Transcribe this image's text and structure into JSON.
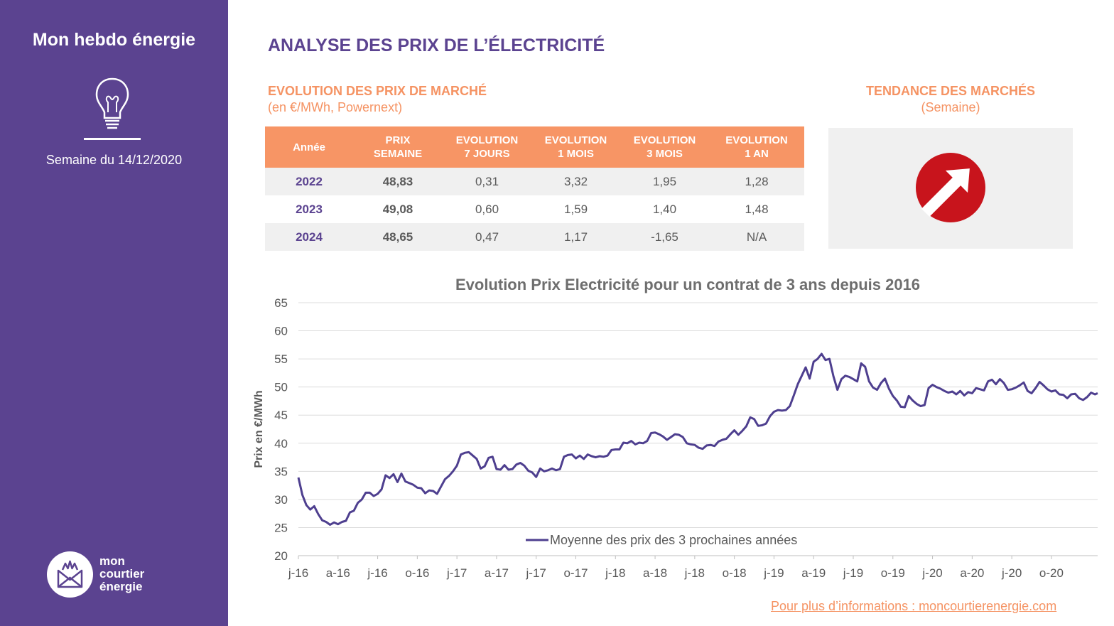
{
  "sidebar": {
    "title": "Mon hebdo énergie",
    "week": "Semaine du 14/12/2020",
    "bulb_icon": "lightbulb-icon",
    "logo_icon": "envelope-crown-icon",
    "logo_lines": [
      "mon",
      "courtier",
      "énergie"
    ]
  },
  "header": {
    "title": "ANALYSE DES PRIX DE L’ÉLECTRICITÉ",
    "table_title": "EVOLUTION DES PRIX DE MARCHÉ",
    "table_note": "(en €/MWh, Powernext)",
    "trend_title": "TENDANCE DES MARCHÉS",
    "trend_note": "(Semaine)"
  },
  "colors": {
    "purple": "#5b4390",
    "orange": "#f79565",
    "trend_red": "#c8141c",
    "line": "#4e3f8f"
  },
  "table": {
    "headers": [
      [
        "Année"
      ],
      [
        "PRIX",
        "SEMAINE"
      ],
      [
        "EVOLUTION",
        "7 JOURS"
      ],
      [
        "EVOLUTION",
        "1 MOIS"
      ],
      [
        "EVOLUTION",
        "3 MOIS"
      ],
      [
        "EVOLUTION",
        "1 AN"
      ]
    ],
    "rows": [
      [
        "2022",
        "48,83",
        "0,31",
        "3,32",
        "1,95",
        "1,28"
      ],
      [
        "2023",
        "49,08",
        "0,60",
        "1,59",
        "1,40",
        "1,48"
      ],
      [
        "2024",
        "48,65",
        "0,47",
        "1,17",
        "-1,65",
        "N/A"
      ]
    ]
  },
  "trend": {
    "direction": "up-right",
    "icon": "arrow-up-right-icon"
  },
  "footer": {
    "link": "Pour plus d’informations : moncourtierenergie.com"
  },
  "chart_data": {
    "type": "line",
    "title": "Evolution Prix Electricité pour un contrat de 3 ans depuis 2016",
    "xlabel": "",
    "ylabel": "Prix en €/MWh",
    "ylim": [
      20,
      65
    ],
    "yticks": [
      20,
      25,
      30,
      35,
      40,
      45,
      50,
      55,
      60,
      65
    ],
    "grid": true,
    "legend": "bottom-center",
    "x_tick_labels": [
      "j-16",
      "a-16",
      "j-16",
      "o-16",
      "j-17",
      "a-17",
      "j-17",
      "o-17",
      "j-18",
      "a-18",
      "j-18",
      "o-18",
      "j-19",
      "a-19",
      "j-19",
      "o-19",
      "j-20",
      "a-20",
      "j-20",
      "o-20"
    ],
    "x_tick_months": [
      0,
      3,
      6,
      9,
      12,
      15,
      18,
      21,
      24,
      27,
      30,
      33,
      36,
      39,
      42,
      45,
      48,
      51,
      54,
      57
    ],
    "x_range_months": [
      0,
      60.5
    ],
    "series": [
      {
        "name": "Moyenne des prix des 3 prochaines années",
        "points": [
          [
            0.0,
            33.9
          ],
          [
            0.3,
            30.8
          ],
          [
            0.6,
            29.0
          ],
          [
            0.9,
            28.2
          ],
          [
            1.2,
            28.8
          ],
          [
            1.5,
            27.4
          ],
          [
            1.8,
            26.3
          ],
          [
            2.1,
            26.0
          ],
          [
            2.4,
            25.5
          ],
          [
            2.7,
            25.9
          ],
          [
            3.0,
            25.6
          ],
          [
            3.3,
            26.0
          ],
          [
            3.6,
            26.2
          ],
          [
            3.9,
            27.7
          ],
          [
            4.2,
            28.0
          ],
          [
            4.5,
            29.4
          ],
          [
            4.8,
            30.0
          ],
          [
            5.1,
            31.2
          ],
          [
            5.4,
            31.2
          ],
          [
            5.7,
            30.6
          ],
          [
            6.0,
            31.0
          ],
          [
            6.3,
            31.8
          ],
          [
            6.6,
            34.3
          ],
          [
            6.9,
            33.8
          ],
          [
            7.2,
            34.5
          ],
          [
            7.5,
            33.1
          ],
          [
            7.8,
            34.6
          ],
          [
            8.1,
            33.2
          ],
          [
            8.4,
            32.9
          ],
          [
            8.7,
            32.6
          ],
          [
            9.0,
            32.1
          ],
          [
            9.3,
            32.0
          ],
          [
            9.6,
            31.1
          ],
          [
            9.9,
            31.6
          ],
          [
            10.2,
            31.5
          ],
          [
            10.5,
            31.0
          ],
          [
            10.8,
            32.3
          ],
          [
            11.1,
            33.6
          ],
          [
            11.4,
            34.2
          ],
          [
            11.7,
            35.0
          ],
          [
            12.0,
            36.0
          ],
          [
            12.3,
            38.0
          ],
          [
            12.6,
            38.3
          ],
          [
            12.9,
            38.4
          ],
          [
            13.2,
            37.8
          ],
          [
            13.5,
            37.2
          ],
          [
            13.8,
            35.5
          ],
          [
            14.1,
            35.9
          ],
          [
            14.4,
            37.4
          ],
          [
            14.7,
            37.6
          ],
          [
            15.0,
            35.4
          ],
          [
            15.3,
            35.3
          ],
          [
            15.6,
            36.1
          ],
          [
            15.9,
            35.3
          ],
          [
            16.2,
            35.4
          ],
          [
            16.5,
            36.2
          ],
          [
            16.8,
            36.5
          ],
          [
            17.1,
            36.0
          ],
          [
            17.4,
            35.1
          ],
          [
            17.7,
            34.8
          ],
          [
            18.0,
            34.0
          ],
          [
            18.3,
            35.5
          ],
          [
            18.6,
            35.0
          ],
          [
            18.9,
            35.2
          ],
          [
            19.2,
            35.5
          ],
          [
            19.5,
            35.2
          ],
          [
            19.8,
            35.4
          ],
          [
            20.1,
            37.6
          ],
          [
            20.4,
            37.9
          ],
          [
            20.7,
            38.0
          ],
          [
            21.0,
            37.3
          ],
          [
            21.3,
            37.8
          ],
          [
            21.6,
            37.2
          ],
          [
            21.9,
            38.0
          ],
          [
            22.2,
            37.7
          ],
          [
            22.5,
            37.5
          ],
          [
            22.8,
            37.7
          ],
          [
            23.1,
            37.6
          ],
          [
            23.4,
            37.8
          ],
          [
            23.7,
            38.8
          ],
          [
            24.0,
            38.9
          ],
          [
            24.3,
            38.9
          ],
          [
            24.6,
            40.1
          ],
          [
            24.9,
            40.0
          ],
          [
            25.2,
            40.4
          ],
          [
            25.5,
            39.8
          ],
          [
            25.8,
            40.1
          ],
          [
            26.1,
            40.0
          ],
          [
            26.4,
            40.4
          ],
          [
            26.7,
            41.8
          ],
          [
            27.0,
            41.9
          ],
          [
            27.3,
            41.6
          ],
          [
            27.6,
            41.2
          ],
          [
            27.9,
            40.6
          ],
          [
            28.2,
            41.1
          ],
          [
            28.5,
            41.6
          ],
          [
            28.8,
            41.5
          ],
          [
            29.1,
            41.1
          ],
          [
            29.4,
            40.0
          ],
          [
            29.7,
            39.8
          ],
          [
            30.0,
            39.7
          ],
          [
            30.3,
            39.2
          ],
          [
            30.6,
            39.0
          ],
          [
            30.9,
            39.6
          ],
          [
            31.2,
            39.7
          ],
          [
            31.5,
            39.5
          ],
          [
            31.8,
            40.3
          ],
          [
            32.1,
            40.6
          ],
          [
            32.4,
            40.8
          ],
          [
            32.7,
            41.6
          ],
          [
            33.0,
            42.3
          ],
          [
            33.3,
            41.5
          ],
          [
            33.6,
            42.2
          ],
          [
            33.9,
            43.0
          ],
          [
            34.2,
            44.6
          ],
          [
            34.5,
            44.3
          ],
          [
            34.8,
            43.1
          ],
          [
            35.1,
            43.2
          ],
          [
            35.4,
            43.5
          ],
          [
            35.7,
            44.8
          ],
          [
            36.0,
            45.6
          ],
          [
            36.3,
            45.9
          ],
          [
            36.6,
            45.8
          ],
          [
            36.9,
            45.9
          ],
          [
            37.2,
            46.6
          ],
          [
            37.5,
            48.5
          ],
          [
            37.8,
            50.5
          ],
          [
            38.1,
            52.0
          ],
          [
            38.4,
            53.5
          ],
          [
            38.7,
            51.5
          ],
          [
            39.0,
            54.5
          ],
          [
            39.3,
            55.0
          ],
          [
            39.6,
            55.9
          ],
          [
            39.9,
            54.8
          ],
          [
            40.2,
            55.0
          ],
          [
            40.5,
            51.9
          ],
          [
            40.8,
            49.5
          ],
          [
            41.1,
            51.4
          ],
          [
            41.4,
            52.0
          ],
          [
            41.7,
            51.8
          ],
          [
            42.0,
            51.4
          ],
          [
            42.3,
            51.0
          ],
          [
            42.6,
            54.2
          ],
          [
            42.9,
            53.6
          ],
          [
            43.2,
            51.0
          ],
          [
            43.5,
            49.9
          ],
          [
            43.8,
            49.5
          ],
          [
            44.1,
            50.7
          ],
          [
            44.4,
            51.5
          ],
          [
            44.7,
            49.7
          ],
          [
            45.0,
            48.4
          ],
          [
            45.3,
            47.6
          ],
          [
            45.6,
            46.5
          ],
          [
            45.9,
            46.4
          ],
          [
            46.2,
            48.4
          ],
          [
            46.5,
            47.6
          ],
          [
            46.8,
            47.0
          ],
          [
            47.1,
            46.6
          ],
          [
            47.4,
            46.8
          ],
          [
            47.7,
            49.8
          ],
          [
            48.0,
            50.4
          ],
          [
            48.3,
            50.0
          ],
          [
            48.6,
            49.7
          ],
          [
            48.9,
            49.3
          ],
          [
            49.2,
            49.0
          ],
          [
            49.5,
            49.2
          ],
          [
            49.8,
            48.7
          ],
          [
            50.1,
            49.3
          ],
          [
            50.4,
            48.5
          ],
          [
            50.7,
            49.1
          ],
          [
            51.0,
            48.9
          ],
          [
            51.3,
            49.8
          ],
          [
            51.6,
            49.6
          ],
          [
            51.9,
            49.4
          ],
          [
            52.2,
            51.0
          ],
          [
            52.5,
            51.3
          ],
          [
            52.8,
            50.5
          ],
          [
            53.1,
            51.4
          ],
          [
            53.4,
            50.7
          ],
          [
            53.7,
            49.5
          ],
          [
            54.0,
            49.6
          ],
          [
            54.3,
            49.9
          ],
          [
            54.6,
            50.3
          ],
          [
            54.9,
            50.8
          ],
          [
            55.2,
            49.3
          ],
          [
            55.5,
            48.9
          ],
          [
            55.8,
            49.8
          ],
          [
            56.1,
            50.9
          ],
          [
            56.4,
            50.3
          ],
          [
            56.7,
            49.6
          ],
          [
            57.0,
            49.2
          ],
          [
            57.3,
            49.4
          ],
          [
            57.6,
            48.7
          ],
          [
            57.9,
            48.6
          ],
          [
            58.2,
            48.0
          ],
          [
            58.5,
            48.7
          ],
          [
            58.8,
            48.8
          ],
          [
            59.1,
            48.0
          ],
          [
            59.4,
            47.7
          ],
          [
            59.7,
            48.2
          ],
          [
            60.0,
            49.0
          ],
          [
            60.3,
            48.7
          ],
          [
            60.5,
            48.9
          ]
        ]
      }
    ]
  }
}
